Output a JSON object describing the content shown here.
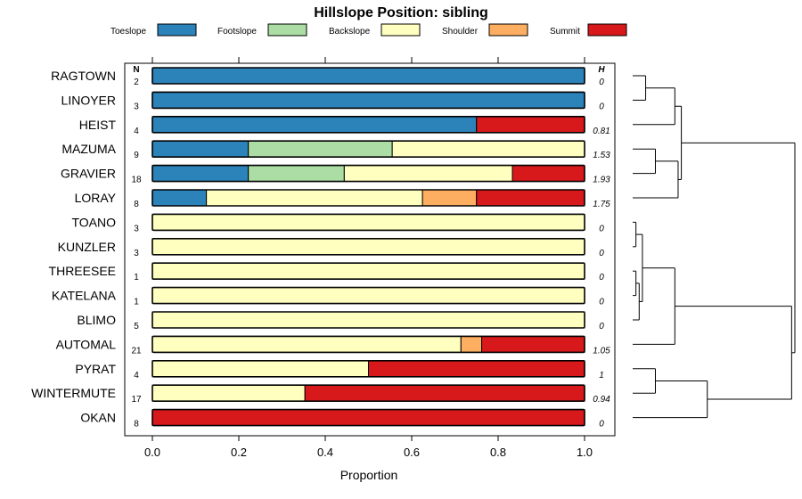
{
  "chart_data": {
    "type": "bar",
    "stacked": true,
    "orientation": "horizontal",
    "title": "Hillslope Position: sibling",
    "xlabel": "Proportion",
    "xlim": [
      0,
      1
    ],
    "x_ticks": [
      "0.0",
      "0.2",
      "0.4",
      "0.6",
      "0.8",
      "1.0"
    ],
    "x_tick_values": [
      0,
      0.2,
      0.4,
      0.6,
      0.8,
      1.0
    ],
    "n_header": "N",
    "h_header": "H",
    "legend_position": "top",
    "categories": [
      "RAGTOWN",
      "LINOYER",
      "HEIST",
      "MAZUMA",
      "GRAVIER",
      "LORAY",
      "TOANO",
      "KUNZLER",
      "THREESEE",
      "KATELANA",
      "BLIMO",
      "AUTOMAL",
      "PYRAT",
      "WINTERMUTE",
      "OKAN"
    ],
    "n": [
      "2",
      "3",
      "4",
      "9",
      "18",
      "8",
      "3",
      "3",
      "1",
      "1",
      "5",
      "21",
      "4",
      "17",
      "8"
    ],
    "h": [
      "0",
      "0",
      "0.81",
      "1.53",
      "1.93",
      "1.75",
      "0",
      "0",
      "0",
      "0",
      "0",
      "1.05",
      "1",
      "0.94",
      "0"
    ],
    "series": [
      {
        "name": "Toeslope",
        "color": "#2b83ba",
        "values": [
          1,
          1,
          0.75,
          0.222,
          0.222,
          0.125,
          0,
          0,
          0,
          0,
          0,
          0,
          0,
          0,
          0
        ]
      },
      {
        "name": "Footslope",
        "color": "#abdda4",
        "values": [
          0,
          0,
          0,
          0.333,
          0.222,
          0,
          0,
          0,
          0,
          0,
          0,
          0,
          0,
          0,
          0
        ]
      },
      {
        "name": "Backslope",
        "color": "#ffffbf",
        "values": [
          0,
          0,
          0,
          0.445,
          0.389,
          0.5,
          1,
          1,
          1,
          1,
          1,
          0.714,
          0.5,
          0.353,
          0
        ]
      },
      {
        "name": "Shoulder",
        "color": "#fdae61",
        "values": [
          0,
          0,
          0,
          0,
          0,
          0.125,
          0,
          0,
          0,
          0,
          0,
          0.048,
          0,
          0,
          0
        ]
      },
      {
        "name": "Summit",
        "color": "#d7191c",
        "values": [
          0,
          0,
          0.25,
          0,
          0.167,
          0.25,
          0,
          0,
          0,
          0,
          0,
          0.238,
          0.5,
          0.647,
          1
        ]
      }
    ],
    "dendrogram": {
      "labels_order": [
        "RAGTOWN",
        "LINOYER",
        "HEIST",
        "MAZUMA",
        "GRAVIER",
        "LORAY",
        "TOANO",
        "KUNZLER",
        "THREESEE",
        "KATELANA",
        "BLIMO",
        "AUTOMAL",
        "PYRAT",
        "WINTERMUTE",
        "OKAN"
      ],
      "merges": [
        {
          "a": "r:RAGTOWN",
          "b": "r:LINOYER",
          "h": 0.08
        },
        {
          "a": "m:0",
          "b": "r:HEIST",
          "h": 0.26
        },
        {
          "a": "r:MAZUMA",
          "b": "r:GRAVIER",
          "h": 0.14
        },
        {
          "a": "m:2",
          "b": "r:LORAY",
          "h": 0.28
        },
        {
          "a": "r:TOANO",
          "b": "r:KUNZLER",
          "h": 0.02
        },
        {
          "a": "r:THREESEE",
          "b": "r:KATELANA",
          "h": 0.02
        },
        {
          "a": "m:5",
          "b": "r:BLIMO",
          "h": 0.04
        },
        {
          "a": "m:4",
          "b": "m:6",
          "h": 0.06
        },
        {
          "a": "m:7",
          "b": "r:AUTOMAL",
          "h": 0.26
        },
        {
          "a": "r:PYRAT",
          "b": "r:WINTERMUTE",
          "h": 0.14
        },
        {
          "a": "m:9",
          "b": "r:OKAN",
          "h": 0.46
        },
        {
          "a": "m:8",
          "b": "m:10",
          "h": 0.98
        },
        {
          "a": "m:1",
          "b": "m:3",
          "h": 0.3
        },
        {
          "a": "m:12",
          "b": "m:11",
          "h": 1.0
        }
      ]
    }
  }
}
